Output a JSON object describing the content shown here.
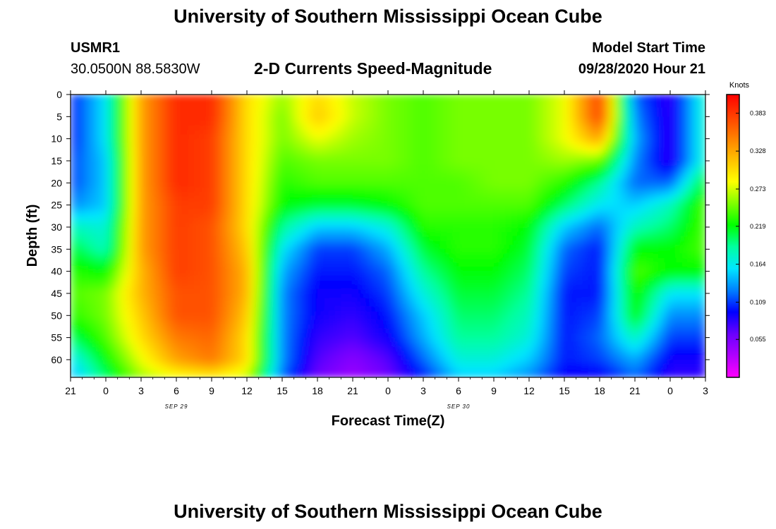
{
  "header": {
    "title": "University of Southern Mississippi Ocean Cube",
    "station_id": "USMR1",
    "station_coords": "30.0500N 88.5830W",
    "plot_title": "2-D Currents Speed-Magnitude",
    "model_start_label": "Model Start Time",
    "model_start_value": "09/28/2020 Hour 21"
  },
  "footer": {
    "title": "University of Southern Mississippi Ocean Cube"
  },
  "colorbar": {
    "unit_label": "Knots",
    "tick_labels": [
      "0.383",
      "0.328",
      "0.273",
      "0.219",
      "0.164",
      "0.109",
      "0.055"
    ],
    "tick_values": [
      0.383,
      0.328,
      0.273,
      0.219,
      0.164,
      0.109,
      0.055
    ],
    "range": [
      0.0,
      0.41
    ],
    "colors": [
      "#ff00ff",
      "#b000ff",
      "#6a00ff",
      "#0000ff",
      "#0080ff",
      "#00e6ff",
      "#00ffa0",
      "#00ff00",
      "#80ff00",
      "#ffff00",
      "#ffc000",
      "#ff8000",
      "#ff4000",
      "#ff0000"
    ]
  },
  "chart_data": {
    "type": "heatmap",
    "title": "2-D Currents Speed-Magnitude",
    "xlabel": "Forecast Time(Z)",
    "ylabel": "Depth (ft)",
    "x_tick_labels": [
      "21",
      "0",
      "3",
      "6",
      "9",
      "12",
      "15",
      "18",
      "21",
      "0",
      "3",
      "6",
      "9",
      "12",
      "15",
      "18",
      "21",
      "0",
      "3"
    ],
    "x_date_labels": [
      {
        "label": "SEP 29",
        "at_hour": 9
      },
      {
        "label": "SEP 30",
        "at_hour": 33
      }
    ],
    "x_range_hours": [
      0,
      54
    ],
    "y_tick_labels": [
      "0",
      "5",
      "10",
      "15",
      "20",
      "25",
      "30",
      "35",
      "40",
      "45",
      "50",
      "55",
      "60"
    ],
    "y_range": [
      0,
      64
    ],
    "value_unit": "Knots",
    "hours": [
      0,
      3,
      6,
      9,
      12,
      15,
      18,
      21,
      24,
      27,
      30,
      33,
      36,
      39,
      42,
      45,
      48,
      51,
      54
    ],
    "depths": [
      0,
      5,
      10,
      15,
      20,
      25,
      30,
      35,
      40,
      45,
      50,
      55,
      60,
      64
    ],
    "values": [
      [
        0.1,
        0.16,
        0.33,
        0.39,
        0.39,
        0.3,
        0.26,
        0.3,
        0.27,
        0.25,
        0.24,
        0.25,
        0.25,
        0.25,
        0.28,
        0.38,
        0.12,
        0.08,
        0.18
      ],
      [
        0.1,
        0.16,
        0.33,
        0.39,
        0.39,
        0.3,
        0.25,
        0.31,
        0.27,
        0.25,
        0.24,
        0.25,
        0.25,
        0.25,
        0.28,
        0.38,
        0.13,
        0.08,
        0.18
      ],
      [
        0.1,
        0.16,
        0.33,
        0.39,
        0.38,
        0.3,
        0.25,
        0.28,
        0.26,
        0.25,
        0.24,
        0.25,
        0.25,
        0.25,
        0.28,
        0.33,
        0.14,
        0.08,
        0.18
      ],
      [
        0.11,
        0.15,
        0.33,
        0.39,
        0.38,
        0.3,
        0.24,
        0.25,
        0.25,
        0.25,
        0.24,
        0.25,
        0.25,
        0.25,
        0.26,
        0.25,
        0.13,
        0.08,
        0.18
      ],
      [
        0.11,
        0.15,
        0.33,
        0.39,
        0.38,
        0.3,
        0.23,
        0.24,
        0.24,
        0.24,
        0.24,
        0.24,
        0.25,
        0.25,
        0.23,
        0.19,
        0.12,
        0.12,
        0.22
      ],
      [
        0.13,
        0.15,
        0.33,
        0.38,
        0.38,
        0.3,
        0.22,
        0.21,
        0.21,
        0.22,
        0.24,
        0.24,
        0.24,
        0.24,
        0.2,
        0.16,
        0.15,
        0.18,
        0.24
      ],
      [
        0.18,
        0.17,
        0.33,
        0.38,
        0.37,
        0.3,
        0.19,
        0.15,
        0.15,
        0.17,
        0.23,
        0.23,
        0.23,
        0.22,
        0.15,
        0.12,
        0.18,
        0.2,
        0.24
      ],
      [
        0.21,
        0.18,
        0.33,
        0.38,
        0.37,
        0.31,
        0.16,
        0.11,
        0.11,
        0.14,
        0.21,
        0.23,
        0.23,
        0.21,
        0.12,
        0.1,
        0.22,
        0.22,
        0.24
      ],
      [
        0.23,
        0.22,
        0.32,
        0.38,
        0.37,
        0.32,
        0.14,
        0.1,
        0.1,
        0.12,
        0.19,
        0.22,
        0.22,
        0.2,
        0.11,
        0.1,
        0.24,
        0.22,
        0.22
      ],
      [
        0.24,
        0.25,
        0.32,
        0.37,
        0.37,
        0.32,
        0.13,
        0.09,
        0.09,
        0.11,
        0.17,
        0.21,
        0.21,
        0.19,
        0.1,
        0.1,
        0.23,
        0.16,
        0.16
      ],
      [
        0.23,
        0.25,
        0.31,
        0.37,
        0.37,
        0.31,
        0.13,
        0.09,
        0.08,
        0.1,
        0.15,
        0.2,
        0.2,
        0.18,
        0.1,
        0.11,
        0.22,
        0.13,
        0.13
      ],
      [
        0.2,
        0.24,
        0.3,
        0.35,
        0.36,
        0.3,
        0.13,
        0.08,
        0.07,
        0.09,
        0.14,
        0.19,
        0.19,
        0.17,
        0.1,
        0.12,
        0.18,
        0.11,
        0.11
      ],
      [
        0.16,
        0.22,
        0.28,
        0.33,
        0.35,
        0.3,
        0.13,
        0.07,
        0.05,
        0.07,
        0.12,
        0.17,
        0.17,
        0.15,
        0.1,
        0.11,
        0.14,
        0.09,
        0.09
      ],
      [
        0.14,
        0.2,
        0.26,
        0.28,
        0.29,
        0.27,
        0.12,
        0.06,
        0.04,
        0.06,
        0.1,
        0.15,
        0.15,
        0.13,
        0.09,
        0.09,
        0.12,
        0.08,
        0.08
      ]
    ]
  }
}
